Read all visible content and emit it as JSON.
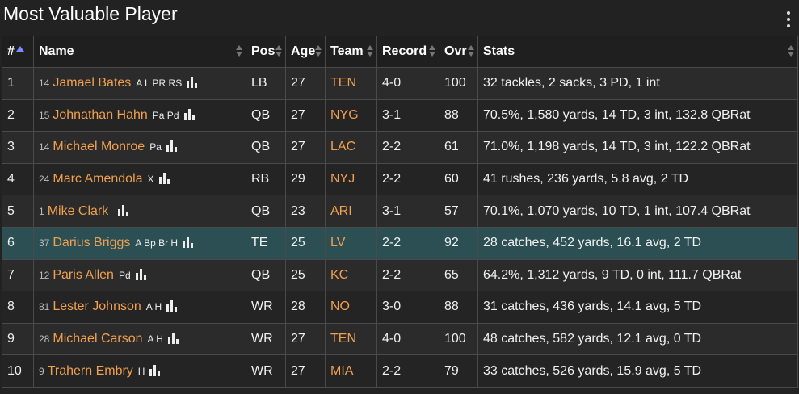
{
  "page": {
    "title": "Most Valuable Player"
  },
  "table": {
    "headers": {
      "rank": "#",
      "name": "Name",
      "pos": "Pos",
      "age": "Age",
      "team": "Team",
      "record": "Record",
      "ovr": "Ovr",
      "stats": "Stats"
    },
    "rows": [
      {
        "rank": "1",
        "jersey": "14",
        "name": "Jamael Bates",
        "tags": "A L PR RS",
        "pos": "LB",
        "age": "27",
        "team": "TEN",
        "record": "4-0",
        "ovr": "100",
        "stats": "32 tackles, 2 sacks, 3 PD, 1 int"
      },
      {
        "rank": "2",
        "jersey": "15",
        "name": "Johnathan Hahn",
        "tags": "Pa Pd",
        "pos": "QB",
        "age": "27",
        "team": "NYG",
        "record": "3-1",
        "ovr": "88",
        "stats": "70.5%, 1,580 yards, 14 TD, 3 int, 132.8 QBRat"
      },
      {
        "rank": "3",
        "jersey": "14",
        "name": "Michael Monroe",
        "tags": "Pa",
        "pos": "QB",
        "age": "27",
        "team": "LAC",
        "record": "2-2",
        "ovr": "61",
        "stats": "71.0%, 1,198 yards, 14 TD, 3 int, 122.2 QBRat"
      },
      {
        "rank": "4",
        "jersey": "24",
        "name": "Marc Amendola",
        "tags": "X",
        "pos": "RB",
        "age": "29",
        "team": "NYJ",
        "record": "2-2",
        "ovr": "60",
        "stats": "41 rushes, 236 yards, 5.8 avg, 2 TD"
      },
      {
        "rank": "5",
        "jersey": "1",
        "name": "Mike Clark",
        "tags": "",
        "pos": "QB",
        "age": "23",
        "team": "ARI",
        "record": "3-1",
        "ovr": "57",
        "stats": "70.1%, 1,070 yards, 10 TD, 1 int, 107.4 QBRat"
      },
      {
        "rank": "6",
        "jersey": "37",
        "name": "Darius Briggs",
        "tags": "A Bp Br H",
        "pos": "TE",
        "age": "25",
        "team": "LV",
        "record": "2-2",
        "ovr": "92",
        "stats": "28 catches, 452 yards, 16.1 avg, 2 TD",
        "highlight": true
      },
      {
        "rank": "7",
        "jersey": "12",
        "name": "Paris Allen",
        "tags": "Pd",
        "pos": "QB",
        "age": "25",
        "team": "KC",
        "record": "2-2",
        "ovr": "65",
        "stats": "64.2%, 1,312 yards, 9 TD, 0 int, 111.7 QBRat"
      },
      {
        "rank": "8",
        "jersey": "81",
        "name": "Lester Johnson",
        "tags": "A H",
        "pos": "WR",
        "age": "28",
        "team": "NO",
        "record": "3-0",
        "ovr": "88",
        "stats": "31 catches, 436 yards, 14.1 avg, 5 TD"
      },
      {
        "rank": "9",
        "jersey": "28",
        "name": "Michael Carson",
        "tags": "A H",
        "pos": "WR",
        "age": "27",
        "team": "TEN",
        "record": "4-0",
        "ovr": "100",
        "stats": "48 catches, 582 yards, 12.1 avg, 0 TD"
      },
      {
        "rank": "10",
        "jersey": "9",
        "name": "Trahern Embry",
        "tags": "H",
        "pos": "WR",
        "age": "27",
        "team": "MIA",
        "record": "2-2",
        "ovr": "79",
        "stats": "33 catches, 526 yards, 15.9 avg, 5 TD"
      }
    ]
  },
  "colors": {
    "accent": "#f0a050",
    "highlight_row": "#2c4f54",
    "sort_active": "#7a8cff"
  },
  "icons": {
    "menu": "kebab-menu-icon",
    "stats": "bar-chart-icon",
    "sort": "sort-icon"
  }
}
